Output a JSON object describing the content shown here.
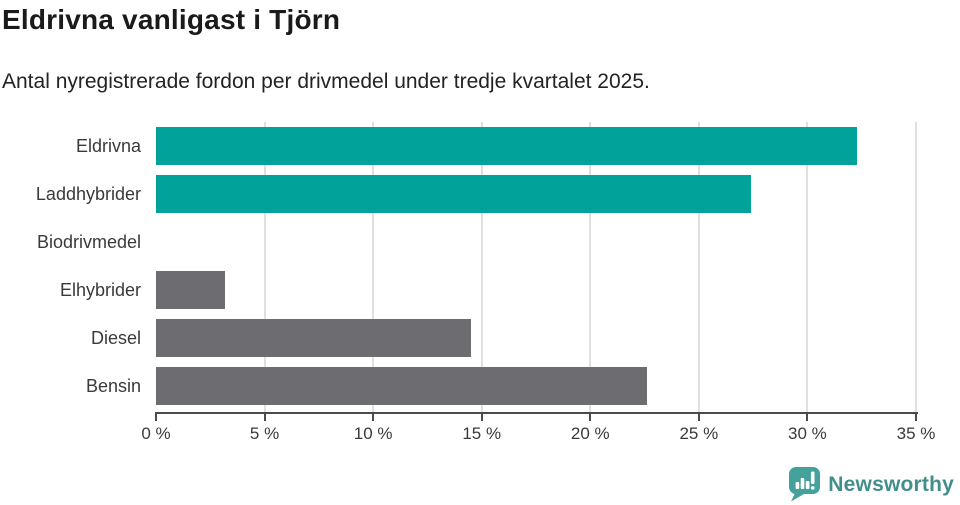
{
  "header": {
    "title": "Eldrivna vanligast i Tjörn",
    "subtitle": "Antal nyregistrerade fordon per drivmedel under tredje kvartalet 2025."
  },
  "chart_data": {
    "type": "bar",
    "orientation": "horizontal",
    "title": "Eldrivna vanligast i Tjörn",
    "subtitle": "Antal nyregistrerade fordon per drivmedel under tredje kvartalet 2025.",
    "categories": [
      "Eldrivna",
      "Laddhybrider",
      "Biodrivmedel",
      "Elhybrider",
      "Diesel",
      "Bensin"
    ],
    "values": [
      32.3,
      27.4,
      0,
      3.2,
      14.5,
      22.6
    ],
    "unit": "%",
    "xlim": [
      0,
      35
    ],
    "x_tick_values": [
      0,
      5,
      10,
      15,
      20,
      25,
      30,
      35
    ],
    "x_tick_labels": [
      "0 %",
      "5 %",
      "10 %",
      "15 %",
      "20 %",
      "25 %",
      "30 %",
      "35 %"
    ],
    "grid": true,
    "legend": "none",
    "colors": {
      "highlight": "#00a29a",
      "default": "#6c6c71",
      "bar_colors": [
        "#00a29a",
        "#00a29a",
        "#6c6c71",
        "#6c6c71",
        "#6c6c71",
        "#6c6c71"
      ],
      "gridline": "#e0e0e0",
      "axis": "#4b4b4b"
    }
  },
  "footer": {
    "brand": "Newsworthy",
    "brand_color": "#418f8c",
    "logo_icon": "newsworthy-speech-bubble-barchart-icon"
  }
}
